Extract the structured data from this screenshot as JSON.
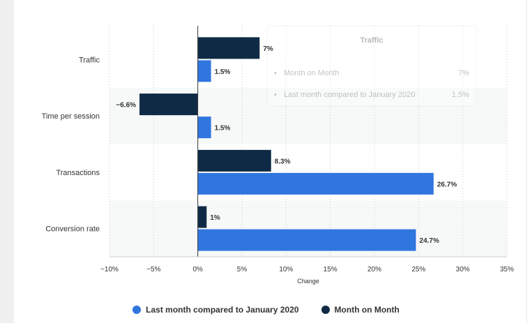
{
  "chart_data": {
    "type": "bar",
    "orientation": "horizontal",
    "categories": [
      "Traffic",
      "Time per session",
      "Transactions",
      "Conversion rate"
    ],
    "series": [
      {
        "name": "Month on Month",
        "color": "#0f2a44",
        "values": [
          7,
          -6.6,
          8.3,
          1
        ],
        "labels": [
          "7%",
          "−6.6%",
          "8.3%",
          "1%"
        ]
      },
      {
        "name": "Last month compared to January 2020",
        "color": "#2f76df",
        "values": [
          1.5,
          1.5,
          26.7,
          24.7
        ],
        "labels": [
          "1.5%",
          "1.5%",
          "26.7%",
          "24.7%"
        ]
      }
    ],
    "xlim": [
      -10,
      35
    ],
    "xticks": [
      -10,
      -5,
      0,
      5,
      10,
      15,
      20,
      25,
      30,
      35
    ],
    "xtick_labels": [
      "−10%",
      "−5%",
      "0%",
      "5%",
      "10%",
      "15%",
      "20%",
      "25%",
      "30%",
      "35%"
    ],
    "xlabel": "Change",
    "ylabel": "",
    "legend_position": "bottom",
    "grid": true
  },
  "tooltip": {
    "title": "Traffic",
    "rows": [
      {
        "label": "Month on Month",
        "value": "7%"
      },
      {
        "label": "Last month compared to January 2020",
        "value": "1.5%"
      }
    ]
  },
  "legend": {
    "items": [
      {
        "label": "Last month compared to January 2020",
        "color": "#2f76df"
      },
      {
        "label": "Month on Month",
        "color": "#0f2a44"
      }
    ]
  }
}
